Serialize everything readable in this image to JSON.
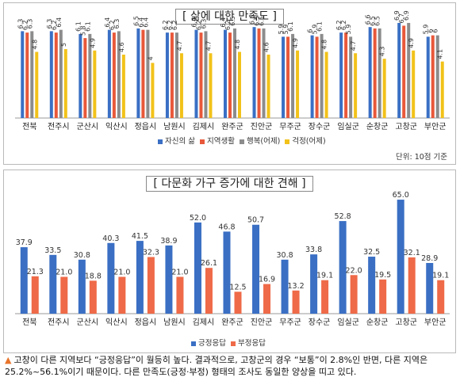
{
  "caption": {
    "marker": "▲",
    "text": "고창이 다른 지역보다 “긍정응답”이 월등히 높다. 결과적으로, 고창군의 경우 “보통”이 2.8%인 반면, 다른 지역은 25.2%~56.1%이기 때문이다. 다른 만족도(긍정·부정) 형태의 조사도 동일한 양상을 띠고 있다."
  },
  "chart_data": [
    {
      "type": "bar",
      "title": "[ 삶에 대한 만족도 ]",
      "note": "단위: 10점 기준",
      "categories": [
        "전북",
        "전주시",
        "군산시",
        "익산시",
        "정읍시",
        "남원시",
        "김제시",
        "완주군",
        "진안군",
        "무주군",
        "장수군",
        "임실군",
        "순창군",
        "고창군",
        "부안군"
      ],
      "series": [
        {
          "name": "자신의 삶",
          "color": "#3a6fc4",
          "values": [
            6.3,
            6.3,
            6.1,
            6.4,
            6.5,
            6.2,
            6.4,
            6.4,
            6.6,
            5.9,
            6,
            6.2,
            6.6,
            6.9,
            5.9
          ]
        },
        {
          "name": "지역생활",
          "color": "#e8583a",
          "values": [
            6.2,
            6.2,
            5.8,
            6.2,
            6.4,
            6.2,
            6.2,
            6.2,
            6.5,
            5.9,
            5.9,
            6.2,
            6.5,
            6.7,
            6
          ]
        },
        {
          "name": "행복(어제)",
          "color": "#8c8c8c",
          "values": [
            6.3,
            6.4,
            6.1,
            6.3,
            6.4,
            6.2,
            6.3,
            6.5,
            6.5,
            6.1,
            6.1,
            5.9,
            6.5,
            6.9,
            6
          ]
        },
        {
          "name": "걱정(어제)",
          "color": "#f2c21a",
          "values": [
            4.8,
            5,
            4.9,
            4.6,
            4,
            4.7,
            4.7,
            4.8,
            4.6,
            4.9,
            4.8,
            4.7,
            4.3,
            4.9,
            4.1
          ]
        }
      ],
      "ylim": [
        0,
        7.3
      ],
      "legend": "bottom-right"
    },
    {
      "type": "bar",
      "title": "[ 다문화 가구 증가에 대한 견해 ]",
      "categories": [
        "전북",
        "전주시",
        "군산시",
        "익산시",
        "정읍시",
        "남원시",
        "김제시",
        "완주군",
        "진안군",
        "무주군",
        "장수군",
        "임실군",
        "순창군",
        "고창군",
        "부안군"
      ],
      "series": [
        {
          "name": "긍정응답",
          "color": "#3a6fc4",
          "values": [
            37.9,
            33.5,
            30.8,
            40.3,
            41.5,
            38.9,
            52.0,
            46.8,
            50.7,
            30.8,
            33.8,
            52.8,
            32.5,
            65.0,
            28.9
          ]
        },
        {
          "name": "부정응답",
          "color": "#ef6a48",
          "values": [
            21.3,
            21.0,
            18.8,
            21.0,
            32.3,
            21.0,
            26.1,
            12.5,
            16.9,
            13.2,
            19.1,
            22.0,
            19.5,
            32.1,
            19.1
          ]
        }
      ],
      "ylim": [
        0,
        70
      ],
      "legend": "bottom-center"
    }
  ]
}
